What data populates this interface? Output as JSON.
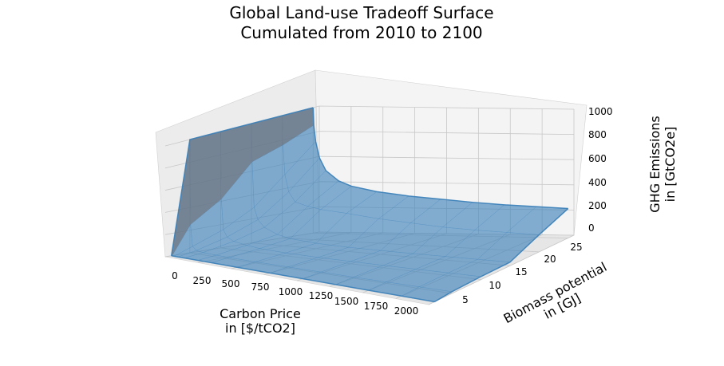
{
  "chart_data": {
    "type": "surface3d",
    "title_line1": "Global Land-use Tradeoff Surface",
    "title_line2": "Cumulated from 2010 to 2100",
    "xlabel_line1": "Carbon Price",
    "xlabel_line2": "in [$/tCO2]",
    "ylabel_line1": "Biomass potential",
    "ylabel_line2": "in [GJ]",
    "zlabel_line1": "GHG Emissions",
    "zlabel_line2": "in [GtCO2e]",
    "x_ticks": [
      "0",
      "250",
      "500",
      "750",
      "1000",
      "1250",
      "1500",
      "1750",
      "2000"
    ],
    "y_ticks": [
      "5",
      "10",
      "15",
      "20",
      "25"
    ],
    "z_ticks": [
      "0",
      "200",
      "400",
      "600",
      "800",
      "1000"
    ],
    "xlim": [
      0,
      2000
    ],
    "ylim": [
      1,
      26
    ],
    "zlim": [
      0,
      1000
    ],
    "surface_color": "#3a7fb8",
    "grid": true,
    "surface": {
      "carbon_price": [
        0,
        5,
        20,
        50,
        100,
        200,
        300,
        500,
        750,
        1000,
        1250,
        1500,
        1750,
        2000
      ],
      "biomass_potential": [
        2,
        5,
        10,
        15,
        20,
        25
      ],
      "emissions": [
        [
          0,
          0,
          0,
          0,
          0,
          0,
          0,
          0,
          0,
          0,
          0,
          0,
          0,
          0
        ],
        [
          1000,
          250,
          60,
          30,
          20,
          15,
          12,
          10,
          10,
          10,
          10,
          12,
          14,
          16
        ],
        [
          1000,
          420,
          160,
          100,
          70,
          50,
          35,
          25,
          20,
          20,
          20,
          22,
          24,
          26
        ],
        [
          1000,
          680,
          300,
          200,
          140,
          90,
          65,
          45,
          35,
          32,
          30,
          30,
          30,
          30
        ],
        [
          1000,
          760,
          520,
          380,
          300,
          270,
          250,
          230,
          200,
          180,
          160,
          150,
          145,
          140
        ],
        [
          1000,
          860,
          730,
          600,
          500,
          420,
          380,
          340,
          310,
          290,
          270,
          255,
          245,
          235
        ]
      ]
    }
  }
}
